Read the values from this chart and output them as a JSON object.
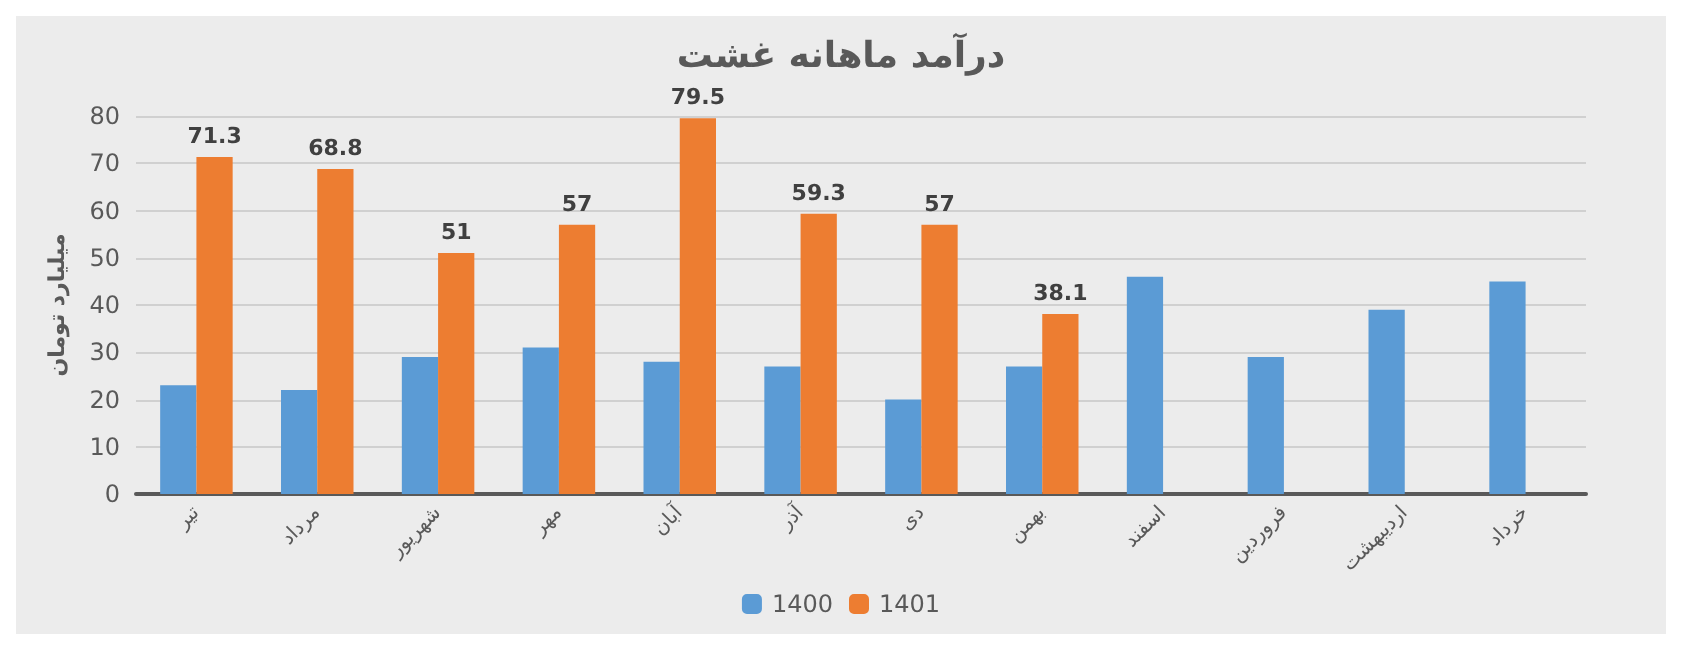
{
  "chart_data": {
    "type": "bar",
    "title": "درآمد ماهانه غشت",
    "ylabel": "میلیارد تومان",
    "categories": [
      "تیر",
      "مرداد",
      "شهریور",
      "مهر",
      "آبان",
      "آذر",
      "دی",
      "بهمن",
      "اسفند",
      "فروردین",
      "اردیبهشت",
      "خرداد"
    ],
    "series": [
      {
        "name": "1400",
        "color": "#5b9bd5",
        "values": [
          23,
          22,
          29,
          31,
          28,
          27,
          20,
          27,
          46,
          29,
          39,
          45
        ]
      },
      {
        "name": "1401",
        "color": "#ed7d31",
        "values": [
          71.3,
          68.8,
          51,
          57,
          79.5,
          59.3,
          57,
          38.1,
          null,
          null,
          null,
          null
        ],
        "value_labels": [
          "71.3",
          "68.8",
          "51",
          "57",
          "79.5",
          "59.3",
          "57",
          "38.1",
          null,
          null,
          null,
          null
        ]
      }
    ],
    "ylim": [
      0,
      80
    ],
    "yticks": [
      0,
      10,
      20,
      30,
      40,
      50,
      60,
      70,
      80
    ],
    "grid": "y",
    "legend": "bottom"
  }
}
